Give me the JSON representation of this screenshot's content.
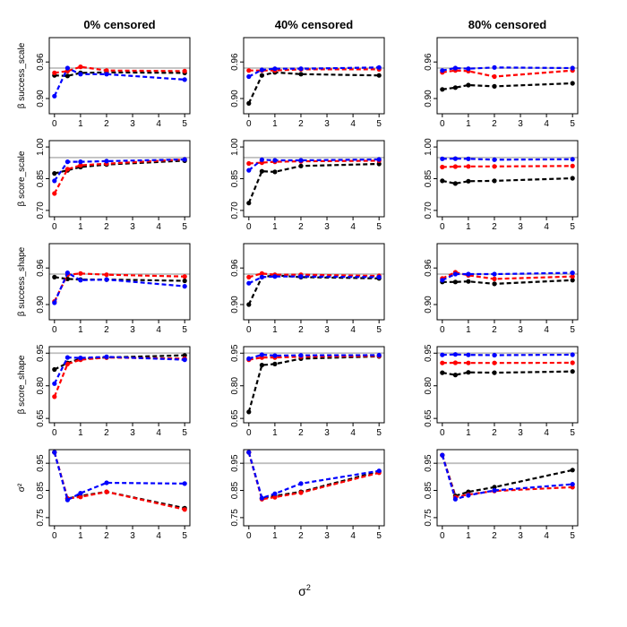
{
  "figure": {
    "x_axis_label": "σ",
    "x_axis_label_sup": "2"
  },
  "colors": {
    "black": "#000000",
    "red": "#ff0000",
    "blue": "#0000ff",
    "nominal": "#bebebe"
  },
  "chart_data": [
    {
      "type": "line",
      "title": "0% censored",
      "ylabel": "β success_scale",
      "ylim": [
        0.875,
        1.0
      ],
      "yticks": [
        "0.90",
        "0.96"
      ],
      "nominal": 0.95,
      "xlim": [
        -0.2,
        5.2
      ],
      "xticks": [
        0,
        1,
        2,
        3,
        4,
        5
      ],
      "x": [
        0,
        0.5,
        1,
        2,
        5
      ],
      "series": [
        {
          "name": "black",
          "values": [
            0.938,
            0.937,
            0.942,
            0.943,
            0.942
          ]
        },
        {
          "name": "red",
          "values": [
            0.942,
            0.945,
            0.952,
            0.946,
            0.945
          ]
        },
        {
          "name": "blue",
          "values": [
            0.904,
            0.95,
            0.94,
            0.94,
            0.931
          ]
        }
      ]
    },
    {
      "type": "line",
      "title": "40% censored",
      "ylabel": "",
      "ylim": [
        0.875,
        1.0
      ],
      "yticks": [
        "0.90",
        "0.96"
      ],
      "nominal": 0.95,
      "xlim": [
        -0.2,
        5.2
      ],
      "xticks": [
        0,
        1,
        2,
        3,
        4,
        5
      ],
      "x": [
        0,
        0.5,
        1,
        2,
        5
      ],
      "series": [
        {
          "name": "black",
          "values": [
            0.892,
            0.938,
            0.943,
            0.94,
            0.938
          ]
        },
        {
          "name": "red",
          "values": [
            0.946,
            0.946,
            0.946,
            0.948,
            0.948
          ]
        },
        {
          "name": "blue",
          "values": [
            0.936,
            0.947,
            0.949,
            0.949,
            0.951
          ]
        }
      ]
    },
    {
      "type": "line",
      "title": "80% censored",
      "ylabel": "",
      "ylim": [
        0.875,
        1.0
      ],
      "yticks": [
        "0.90",
        "0.96"
      ],
      "nominal": 0.95,
      "xlim": [
        -0.2,
        5.2
      ],
      "xticks": [
        0,
        1,
        2,
        3,
        4,
        5
      ],
      "x": [
        0,
        0.5,
        1,
        2,
        5
      ],
      "series": [
        {
          "name": "black",
          "values": [
            0.915,
            0.918,
            0.922,
            0.92,
            0.925
          ]
        },
        {
          "name": "red",
          "values": [
            0.943,
            0.946,
            0.945,
            0.936,
            0.946
          ]
        },
        {
          "name": "blue",
          "values": [
            0.946,
            0.95,
            0.949,
            0.951,
            0.95
          ]
        }
      ]
    },
    {
      "type": "line",
      "title": "",
      "ylabel": "β score_scale",
      "ylim": [
        0.67,
        1.03
      ],
      "yticks": [
        "0.70",
        "0.85",
        "1.00"
      ],
      "nominal": 0.95,
      "xlim": [
        -0.2,
        5.2
      ],
      "xticks": [
        0,
        1,
        2,
        3,
        4,
        5
      ],
      "x": [
        0,
        0.5,
        1,
        2,
        5
      ],
      "series": [
        {
          "name": "black",
          "values": [
            0.875,
            0.89,
            0.905,
            0.917,
            0.935
          ]
        },
        {
          "name": "red",
          "values": [
            0.78,
            0.895,
            0.913,
            0.921,
            0.941
          ]
        },
        {
          "name": "blue",
          "values": [
            0.84,
            0.93,
            0.93,
            0.933,
            0.941
          ]
        }
      ]
    },
    {
      "type": "line",
      "title": "",
      "ylabel": "",
      "ylim": [
        0.67,
        1.03
      ],
      "yticks": [
        "0.70",
        "0.85",
        "1.00"
      ],
      "nominal": 0.95,
      "xlim": [
        -0.2,
        5.2
      ],
      "xticks": [
        0,
        1,
        2,
        3,
        4,
        5
      ],
      "x": [
        0,
        0.5,
        1,
        2,
        5
      ],
      "series": [
        {
          "name": "black",
          "values": [
            0.735,
            0.885,
            0.882,
            0.91,
            0.92
          ]
        },
        {
          "name": "red",
          "values": [
            0.922,
            0.926,
            0.93,
            0.932,
            0.935
          ]
        },
        {
          "name": "blue",
          "values": [
            0.89,
            0.94,
            0.937,
            0.937,
            0.941
          ]
        }
      ]
    },
    {
      "type": "line",
      "title": "",
      "ylabel": "",
      "ylim": [
        0.67,
        1.03
      ],
      "yticks": [
        "0.70",
        "0.85",
        "1.00"
      ],
      "nominal": 0.95,
      "xlim": [
        -0.2,
        5.2
      ],
      "xticks": [
        0,
        1,
        2,
        3,
        4,
        5
      ],
      "x": [
        0,
        0.5,
        1,
        2,
        5
      ],
      "series": [
        {
          "name": "black",
          "values": [
            0.84,
            0.827,
            0.838,
            0.84,
            0.852
          ]
        },
        {
          "name": "red",
          "values": [
            0.905,
            0.907,
            0.908,
            0.908,
            0.91
          ]
        },
        {
          "name": "blue",
          "values": [
            0.944,
            0.945,
            0.944,
            0.94,
            0.942
          ]
        }
      ]
    },
    {
      "type": "line",
      "title": "",
      "ylabel": "β success_shape",
      "ylim": [
        0.875,
        1.0
      ],
      "yticks": [
        "0.90",
        "0.96"
      ],
      "nominal": 0.95,
      "xlim": [
        -0.2,
        5.2
      ],
      "xticks": [
        0,
        1,
        2,
        3,
        4,
        5
      ],
      "x": [
        0,
        0.5,
        1,
        2,
        5
      ],
      "series": [
        {
          "name": "black",
          "values": [
            0.945,
            0.942,
            0.941,
            0.941,
            0.939
          ]
        },
        {
          "name": "red",
          "values": [
            0.905,
            0.949,
            0.951,
            0.949,
            0.946
          ]
        },
        {
          "name": "blue",
          "values": [
            0.903,
            0.952,
            0.94,
            0.941,
            0.93
          ]
        }
      ]
    },
    {
      "type": "line",
      "title": "",
      "ylabel": "",
      "ylim": [
        0.875,
        1.0
      ],
      "yticks": [
        "0.90",
        "0.96"
      ],
      "nominal": 0.95,
      "xlim": [
        -0.2,
        5.2
      ],
      "xticks": [
        0,
        1,
        2,
        3,
        4,
        5
      ],
      "x": [
        0,
        0.5,
        1,
        2,
        5
      ],
      "series": [
        {
          "name": "black",
          "values": [
            0.9,
            0.945,
            0.948,
            0.945,
            0.943
          ]
        },
        {
          "name": "red",
          "values": [
            0.945,
            0.951,
            0.949,
            0.949,
            0.947
          ]
        },
        {
          "name": "blue",
          "values": [
            0.935,
            0.945,
            0.946,
            0.946,
            0.945
          ]
        }
      ]
    },
    {
      "type": "line",
      "title": "",
      "ylabel": "",
      "ylim": [
        0.875,
        1.0
      ],
      "yticks": [
        "0.90",
        "0.96"
      ],
      "nominal": 0.95,
      "xlim": [
        -0.2,
        5.2
      ],
      "xticks": [
        0,
        1,
        2,
        3,
        4,
        5
      ],
      "x": [
        0,
        0.5,
        1,
        2,
        5
      ],
      "series": [
        {
          "name": "black",
          "values": [
            0.937,
            0.937,
            0.938,
            0.934,
            0.94
          ]
        },
        {
          "name": "red",
          "values": [
            0.943,
            0.953,
            0.948,
            0.942,
            0.946
          ]
        },
        {
          "name": "blue",
          "values": [
            0.94,
            0.95,
            0.95,
            0.95,
            0.952
          ]
        }
      ]
    },
    {
      "type": "line",
      "title": "",
      "ylabel": "β score_shape",
      "ylim": [
        0.63,
        0.98
      ],
      "yticks": [
        "0.65",
        "0.80",
        "0.95"
      ],
      "nominal": 0.95,
      "xlim": [
        -0.2,
        5.2
      ],
      "xticks": [
        0,
        1,
        2,
        3,
        4,
        5
      ],
      "x": [
        0,
        0.5,
        1,
        2,
        5
      ],
      "series": [
        {
          "name": "black",
          "values": [
            0.875,
            0.905,
            0.925,
            0.93,
            0.94
          ]
        },
        {
          "name": "red",
          "values": [
            0.75,
            0.9,
            0.92,
            0.93,
            0.925
          ]
        },
        {
          "name": "blue",
          "values": [
            0.81,
            0.93,
            0.928,
            0.933,
            0.92
          ]
        }
      ]
    },
    {
      "type": "line",
      "title": "",
      "ylabel": "",
      "ylim": [
        0.63,
        0.98
      ],
      "yticks": [
        "0.65",
        "0.80",
        "0.95"
      ],
      "nominal": 0.95,
      "xlim": [
        -0.2,
        5.2
      ],
      "xticks": [
        0,
        1,
        2,
        3,
        4,
        5
      ],
      "x": [
        0,
        0.5,
        1,
        2,
        5
      ],
      "series": [
        {
          "name": "black",
          "values": [
            0.68,
            0.895,
            0.9,
            0.925,
            0.935
          ]
        },
        {
          "name": "red",
          "values": [
            0.92,
            0.93,
            0.93,
            0.934,
            0.937
          ]
        },
        {
          "name": "blue",
          "values": [
            0.925,
            0.943,
            0.939,
            0.94,
            0.941
          ]
        }
      ]
    },
    {
      "type": "line",
      "title": "",
      "ylabel": "",
      "ylim": [
        0.63,
        0.98
      ],
      "yticks": [
        "0.65",
        "0.80",
        "0.95"
      ],
      "nominal": 0.95,
      "xlim": [
        -0.2,
        5.2
      ],
      "xticks": [
        0,
        1,
        2,
        3,
        4,
        5
      ],
      "x": [
        0,
        0.5,
        1,
        2,
        5
      ],
      "series": [
        {
          "name": "black",
          "values": [
            0.86,
            0.85,
            0.862,
            0.86,
            0.866
          ]
        },
        {
          "name": "red",
          "values": [
            0.905,
            0.906,
            0.905,
            0.905,
            0.906
          ]
        },
        {
          "name": "blue",
          "values": [
            0.942,
            0.944,
            0.942,
            0.941,
            0.943
          ]
        }
      ]
    },
    {
      "type": "line",
      "title": "",
      "ylabel": "σ²",
      "ylim": [
        0.72,
        1.0
      ],
      "yticks": [
        "0.75",
        "0.85",
        "0.95"
      ],
      "nominal": 0.95,
      "xlim": [
        -0.2,
        5.2
      ],
      "xticks": [
        0,
        1,
        2,
        3,
        4,
        5
      ],
      "x": [
        0,
        0.5,
        1,
        2,
        5
      ],
      "series": [
        {
          "name": "black",
          "values": [
            0.99,
            0.82,
            0.83,
            0.845,
            0.785
          ]
        },
        {
          "name": "red",
          "values": [
            0.99,
            0.82,
            0.826,
            0.845,
            0.78
          ]
        },
        {
          "name": "blue",
          "values": [
            0.99,
            0.815,
            0.84,
            0.878,
            0.875
          ]
        }
      ]
    },
    {
      "type": "line",
      "title": "",
      "ylabel": "",
      "ylim": [
        0.72,
        1.0
      ],
      "yticks": [
        "0.75",
        "0.85",
        "0.95"
      ],
      "nominal": 0.95,
      "xlim": [
        -0.2,
        5.2
      ],
      "xticks": [
        0,
        1,
        2,
        3,
        4,
        5
      ],
      "x": [
        0,
        0.5,
        1,
        2,
        5
      ],
      "series": [
        {
          "name": "black",
          "values": [
            0.99,
            0.82,
            0.83,
            0.845,
            0.92
          ]
        },
        {
          "name": "red",
          "values": [
            0.99,
            0.818,
            0.825,
            0.842,
            0.915
          ]
        },
        {
          "name": "blue",
          "values": [
            0.99,
            0.822,
            0.838,
            0.875,
            0.922
          ]
        }
      ]
    },
    {
      "type": "line",
      "title": "",
      "ylabel": "",
      "ylim": [
        0.72,
        1.0
      ],
      "yticks": [
        "0.75",
        "0.85",
        "0.95"
      ],
      "nominal": 0.95,
      "xlim": [
        -0.2,
        5.2
      ],
      "xticks": [
        0,
        1,
        2,
        3,
        4,
        5
      ],
      "x": [
        0,
        0.5,
        1,
        2,
        5
      ],
      "series": [
        {
          "name": "black",
          "values": [
            0.98,
            0.83,
            0.845,
            0.862,
            0.925
          ]
        },
        {
          "name": "red",
          "values": [
            0.98,
            0.825,
            0.835,
            0.848,
            0.862
          ]
        },
        {
          "name": "blue",
          "values": [
            0.98,
            0.818,
            0.832,
            0.85,
            0.873
          ]
        }
      ]
    }
  ]
}
